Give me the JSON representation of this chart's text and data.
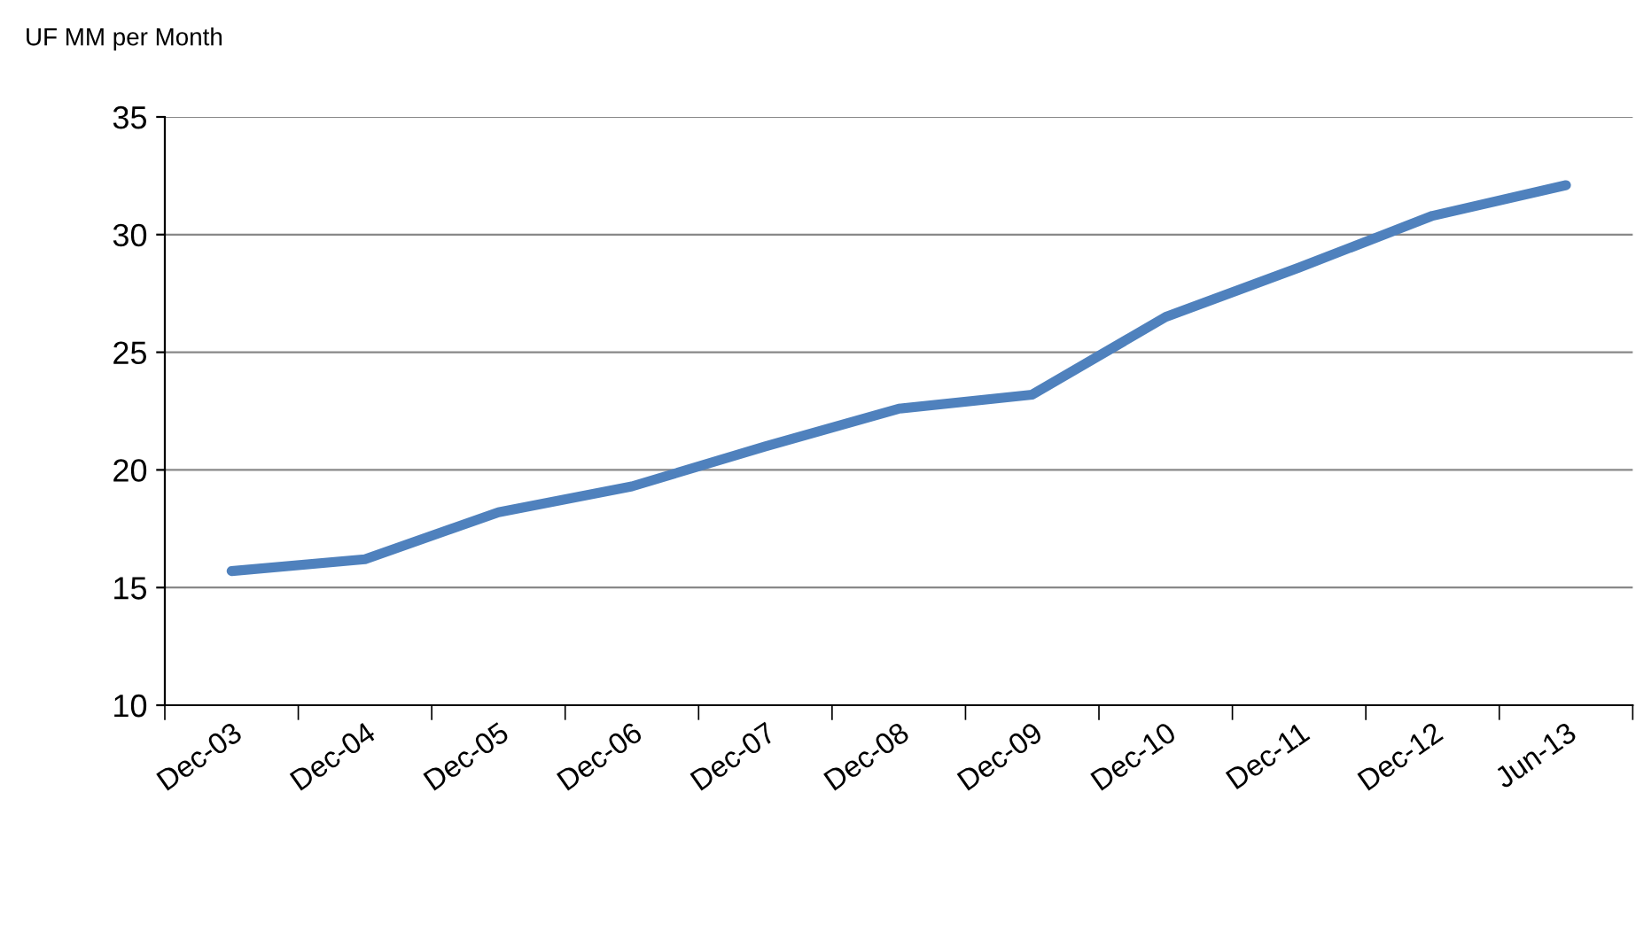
{
  "chart_data": {
    "type": "line",
    "ylabel": "UF MM per Month",
    "categories": [
      "Dec-03",
      "Dec-04",
      "Dec-05",
      "Dec-06",
      "Dec-07",
      "Dec-08",
      "Dec-09",
      "Dec-10",
      "Dec-11",
      "Dec-12",
      "Jun-13"
    ],
    "series": [
      {
        "color": "#4f81bd",
        "values": [
          15.7,
          16.2,
          18.2,
          19.3,
          21.0,
          22.6,
          23.2,
          26.5,
          28.6,
          30.8,
          32.1
        ]
      }
    ],
    "ylim": [
      10,
      35
    ],
    "yticks": [
      10,
      15,
      20,
      25,
      30,
      35
    ],
    "grid": "y",
    "marker": "none",
    "line_style": "solid"
  }
}
